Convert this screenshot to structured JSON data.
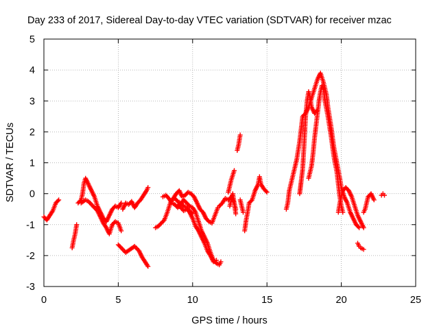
{
  "chart_data": {
    "type": "scatter",
    "title": "Day 233 of 2017, Sidereal Day-to-day VTEC variation (SDTVAR) for receiver mzac",
    "xlabel": "GPS time / hours",
    "ylabel": "SDTVAR / TECUs",
    "xlim": [
      0,
      25
    ],
    "ylim": [
      -3,
      5
    ],
    "x_ticks": [
      "0",
      "5",
      "10",
      "15",
      "20",
      "25"
    ],
    "y_ticks": [
      "-3",
      "-2",
      "-1",
      "0",
      "1",
      "2",
      "3",
      "4",
      "5"
    ],
    "grid": true,
    "marker": "+",
    "series": [
      {
        "name": "mzac",
        "color": "#ff0000",
        "segments": [
          [
            [
              0.0,
              -0.75
            ],
            [
              0.2,
              -0.85
            ],
            [
              0.4,
              -0.7
            ],
            [
              0.6,
              -0.55
            ],
            [
              0.8,
              -0.3
            ],
            [
              1.0,
              -0.2
            ]
          ],
          [
            [
              1.9,
              -1.75
            ],
            [
              2.0,
              -1.5
            ],
            [
              2.1,
              -1.3
            ],
            [
              2.2,
              -1.0
            ]
          ],
          [
            [
              2.3,
              -0.3
            ],
            [
              2.5,
              -0.2
            ],
            [
              2.6,
              0.0
            ],
            [
              2.7,
              0.35
            ],
            [
              2.8,
              0.5
            ],
            [
              3.0,
              0.3
            ],
            [
              3.2,
              0.1
            ],
            [
              3.4,
              -0.1
            ],
            [
              3.6,
              -0.4
            ],
            [
              3.8,
              -0.6
            ],
            [
              4.0,
              -0.8
            ],
            [
              4.2,
              -0.9
            ],
            [
              4.4,
              -0.7
            ],
            [
              4.6,
              -0.5
            ],
            [
              4.8,
              -0.4
            ],
            [
              5.0,
              -0.45
            ],
            [
              5.2,
              -0.3
            ]
          ],
          [
            [
              2.5,
              -0.3
            ],
            [
              2.8,
              -0.2
            ],
            [
              3.0,
              -0.25
            ],
            [
              3.3,
              -0.4
            ],
            [
              3.6,
              -0.55
            ],
            [
              3.8,
              -0.75
            ],
            [
              4.0,
              -0.95
            ],
            [
              4.2,
              -1.1
            ],
            [
              4.4,
              -1.3
            ],
            [
              4.6,
              -1.0
            ],
            [
              4.8,
              -0.9
            ],
            [
              5.0,
              -0.95
            ],
            [
              5.2,
              -1.2
            ]
          ],
          [
            [
              5.0,
              -1.65
            ],
            [
              5.2,
              -1.75
            ],
            [
              5.5,
              -1.9
            ],
            [
              5.8,
              -1.8
            ],
            [
              6.1,
              -1.7
            ],
            [
              6.4,
              -1.85
            ],
            [
              6.6,
              -2.05
            ],
            [
              6.8,
              -2.2
            ],
            [
              7.0,
              -2.35
            ]
          ],
          [
            [
              5.3,
              -0.5
            ],
            [
              5.5,
              -0.3
            ],
            [
              5.7,
              -0.35
            ],
            [
              5.9,
              -0.25
            ],
            [
              6.1,
              -0.45
            ],
            [
              6.3,
              -0.3
            ],
            [
              6.5,
              -0.2
            ],
            [
              6.7,
              -0.05
            ],
            [
              6.9,
              0.1
            ],
            [
              7.0,
              0.2
            ]
          ],
          [
            [
              7.5,
              -1.1
            ],
            [
              7.7,
              -1.05
            ],
            [
              7.9,
              -0.95
            ],
            [
              8.1,
              -0.85
            ],
            [
              8.3,
              -0.6
            ],
            [
              8.5,
              -0.3
            ],
            [
              8.7,
              -0.15
            ],
            [
              8.9,
              0.0
            ],
            [
              9.1,
              0.1
            ],
            [
              9.3,
              -0.1
            ],
            [
              9.5,
              -0.05
            ],
            [
              9.7,
              0.05
            ],
            [
              9.9,
              0.0
            ],
            [
              10.1,
              -0.1
            ],
            [
              10.3,
              -0.3
            ],
            [
              10.5,
              -0.5
            ],
            [
              10.7,
              -0.6
            ],
            [
              10.9,
              -0.8
            ],
            [
              11.1,
              -0.9
            ],
            [
              11.3,
              -0.95
            ],
            [
              11.5,
              -0.7
            ],
            [
              11.7,
              -0.45
            ]
          ],
          [
            [
              8.0,
              -0.1
            ],
            [
              8.2,
              -0.05
            ],
            [
              8.4,
              -0.15
            ],
            [
              8.6,
              -0.3
            ],
            [
              8.8,
              -0.35
            ],
            [
              9.0,
              -0.45
            ],
            [
              9.2,
              -0.35
            ],
            [
              9.4,
              -0.2
            ],
            [
              9.6,
              -0.3
            ],
            [
              9.8,
              -0.4
            ],
            [
              10.0,
              -0.45
            ],
            [
              10.2,
              -0.6
            ],
            [
              10.4,
              -0.9
            ],
            [
              10.6,
              -1.2
            ],
            [
              10.8,
              -1.4
            ],
            [
              11.0,
              -1.6
            ],
            [
              11.2,
              -1.9
            ],
            [
              11.4,
              -2.15
            ],
            [
              11.6,
              -2.25
            ],
            [
              11.8,
              -2.3
            ],
            [
              11.9,
              -2.2
            ]
          ],
          [
            [
              9.0,
              -0.35
            ],
            [
              9.2,
              -0.45
            ],
            [
              9.4,
              -0.55
            ],
            [
              9.6,
              -0.5
            ],
            [
              9.8,
              -0.6
            ],
            [
              10.0,
              -0.8
            ],
            [
              10.2,
              -1.05
            ],
            [
              10.4,
              -1.2
            ],
            [
              10.6,
              -1.4
            ],
            [
              10.8,
              -1.6
            ],
            [
              11.0,
              -1.85
            ],
            [
              11.2,
              -2.0
            ],
            [
              11.4,
              -2.2
            ],
            [
              11.6,
              -2.15
            ]
          ],
          [
            [
              8.8,
              -0.15
            ],
            [
              9.0,
              -0.25
            ],
            [
              9.2,
              -0.3
            ],
            [
              9.4,
              -0.4
            ],
            [
              9.6,
              -0.45
            ],
            [
              9.8,
              -0.55
            ],
            [
              10.0,
              -0.65
            ]
          ],
          [
            [
              11.8,
              -0.4
            ],
            [
              12.0,
              -0.3
            ],
            [
              12.2,
              -0.15
            ],
            [
              12.4,
              -0.2
            ],
            [
              12.6,
              -0.1
            ],
            [
              12.8,
              -0.3
            ],
            [
              12.9,
              -0.5
            ]
          ],
          [
            [
              12.4,
              0.05
            ],
            [
              12.5,
              0.25
            ],
            [
              12.6,
              0.45
            ],
            [
              12.7,
              0.6
            ],
            [
              12.8,
              0.75
            ]
          ],
          [
            [
              12.5,
              -0.4
            ],
            [
              12.6,
              -0.2
            ],
            [
              12.7,
              0.0
            ],
            [
              12.8,
              -0.3
            ],
            [
              12.9,
              -0.65
            ]
          ],
          [
            [
              13.0,
              1.4
            ],
            [
              13.1,
              1.6
            ],
            [
              13.2,
              1.9
            ]
          ],
          [
            [
              13.5,
              -1.2
            ],
            [
              13.6,
              -0.85
            ],
            [
              13.7,
              -0.6
            ],
            [
              13.8,
              -0.3
            ],
            [
              14.0,
              -0.2
            ],
            [
              14.2,
              0.1
            ],
            [
              14.4,
              0.3
            ],
            [
              14.5,
              0.55
            ],
            [
              14.6,
              0.3
            ],
            [
              14.8,
              0.15
            ],
            [
              15.0,
              0.05
            ]
          ],
          [
            [
              13.2,
              -0.2
            ],
            [
              13.3,
              -0.4
            ],
            [
              13.4,
              -0.6
            ]
          ],
          [
            [
              16.3,
              -0.5
            ],
            [
              16.4,
              -0.3
            ],
            [
              16.5,
              0.1
            ],
            [
              16.6,
              0.3
            ],
            [
              16.8,
              0.7
            ],
            [
              17.0,
              1.1
            ],
            [
              17.2,
              1.7
            ],
            [
              17.4,
              2.5
            ],
            [
              17.6,
              2.6
            ],
            [
              17.8,
              2.8
            ],
            [
              18.0,
              3.1
            ],
            [
              18.2,
              3.4
            ],
            [
              18.4,
              3.7
            ],
            [
              18.6,
              3.9
            ],
            [
              18.8,
              3.6
            ],
            [
              19.0,
              3.2
            ],
            [
              19.1,
              2.8
            ],
            [
              19.3,
              2.2
            ],
            [
              19.5,
              1.5
            ],
            [
              19.7,
              1.0
            ],
            [
              19.9,
              0.5
            ],
            [
              20.0,
              0.2
            ],
            [
              20.2,
              -0.1
            ],
            [
              20.4,
              -0.3
            ],
            [
              20.6,
              -0.6
            ],
            [
              20.8,
              -0.8
            ],
            [
              21.0,
              -1.0
            ],
            [
              21.2,
              -1.1
            ]
          ],
          [
            [
              17.2,
              0.0
            ],
            [
              17.4,
              0.8
            ],
            [
              17.5,
              1.6
            ],
            [
              17.6,
              2.5
            ],
            [
              17.7,
              3.0
            ],
            [
              17.8,
              3.3
            ],
            [
              17.9,
              3.1
            ],
            [
              18.0,
              2.8
            ],
            [
              18.2,
              2.6
            ],
            [
              18.4,
              2.7
            ]
          ],
          [
            [
              17.8,
              0.5
            ],
            [
              18.0,
              0.9
            ],
            [
              18.1,
              1.3
            ],
            [
              18.2,
              1.8
            ],
            [
              18.3,
              2.2
            ],
            [
              18.4,
              2.6
            ],
            [
              18.5,
              3.0
            ],
            [
              18.6,
              3.3
            ],
            [
              18.7,
              3.5
            ],
            [
              18.8,
              3.4
            ],
            [
              18.9,
              3.0
            ],
            [
              19.1,
              2.5
            ],
            [
              19.3,
              1.9
            ],
            [
              19.5,
              1.2
            ],
            [
              19.7,
              0.7
            ],
            [
              19.8,
              0.3
            ],
            [
              19.9,
              -0.1
            ],
            [
              20.0,
              -0.4
            ],
            [
              20.1,
              -0.6
            ]
          ],
          [
            [
              19.8,
              -0.6
            ],
            [
              19.9,
              -0.3
            ],
            [
              20.0,
              -0.1
            ],
            [
              20.1,
              0.1
            ],
            [
              20.3,
              0.2
            ],
            [
              20.5,
              0.1
            ],
            [
              20.7,
              -0.1
            ],
            [
              20.9,
              -0.4
            ],
            [
              21.1,
              -0.7
            ],
            [
              21.3,
              -0.9
            ],
            [
              21.5,
              -1.1
            ]
          ],
          [
            [
              21.1,
              -1.6
            ],
            [
              21.2,
              -1.7
            ],
            [
              21.3,
              -1.75
            ],
            [
              21.5,
              -1.8
            ]
          ],
          [
            [
              21.5,
              -0.6
            ],
            [
              21.6,
              -0.5
            ],
            [
              21.7,
              -0.3
            ],
            [
              21.8,
              -0.1
            ],
            [
              22.0,
              0.0
            ],
            [
              22.2,
              -0.2
            ]
          ],
          [
            [
              22.7,
              -0.05
            ],
            [
              22.8,
              0.0
            ],
            [
              22.9,
              -0.05
            ]
          ]
        ]
      }
    ]
  }
}
